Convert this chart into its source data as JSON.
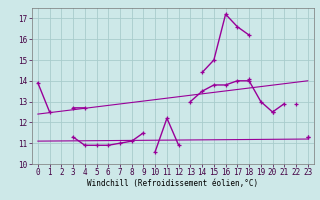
{
  "xlabel": "Windchill (Refroidissement éolien,°C)",
  "background_color": "#cde8e8",
  "grid_color": "#a8cccc",
  "line_color": "#990099",
  "x": [
    0,
    1,
    2,
    3,
    4,
    5,
    6,
    7,
    8,
    9,
    10,
    11,
    12,
    13,
    14,
    15,
    16,
    17,
    18,
    19,
    20,
    21,
    22,
    23
  ],
  "line1": [
    13.9,
    12.5,
    null,
    12.7,
    12.7,
    null,
    null,
    null,
    null,
    null,
    10.6,
    12.2,
    10.9,
    null,
    null,
    null,
    null,
    null,
    14.1,
    null,
    12.5,
    null,
    12.9,
    null
  ],
  "line2": [
    null,
    null,
    null,
    11.3,
    10.9,
    10.9,
    10.9,
    11.0,
    11.1,
    11.5,
    null,
    null,
    null,
    null,
    14.4,
    15.0,
    17.2,
    16.6,
    16.2,
    null,
    null,
    null,
    null,
    11.3
  ],
  "line3": [
    null,
    null,
    null,
    null,
    null,
    null,
    null,
    null,
    null,
    null,
    null,
    null,
    null,
    13.0,
    13.5,
    13.8,
    13.8,
    14.0,
    14.0,
    13.0,
    12.5,
    12.9,
    null,
    11.3
  ],
  "trend1_x": [
    0,
    23
  ],
  "trend1_y": [
    12.4,
    14.0
  ],
  "trend2_x": [
    0,
    23
  ],
  "trend2_y": [
    11.1,
    11.2
  ],
  "ylim": [
    10,
    17.5
  ],
  "xlim": [
    -0.5,
    23.5
  ],
  "yticks": [
    10,
    11,
    12,
    13,
    14,
    15,
    16,
    17
  ],
  "xticks": [
    0,
    1,
    2,
    3,
    4,
    5,
    6,
    7,
    8,
    9,
    10,
    11,
    12,
    13,
    14,
    15,
    16,
    17,
    18,
    19,
    20,
    21,
    22,
    23
  ],
  "tick_fontsize": 5.5,
  "xlabel_fontsize": 5.5
}
